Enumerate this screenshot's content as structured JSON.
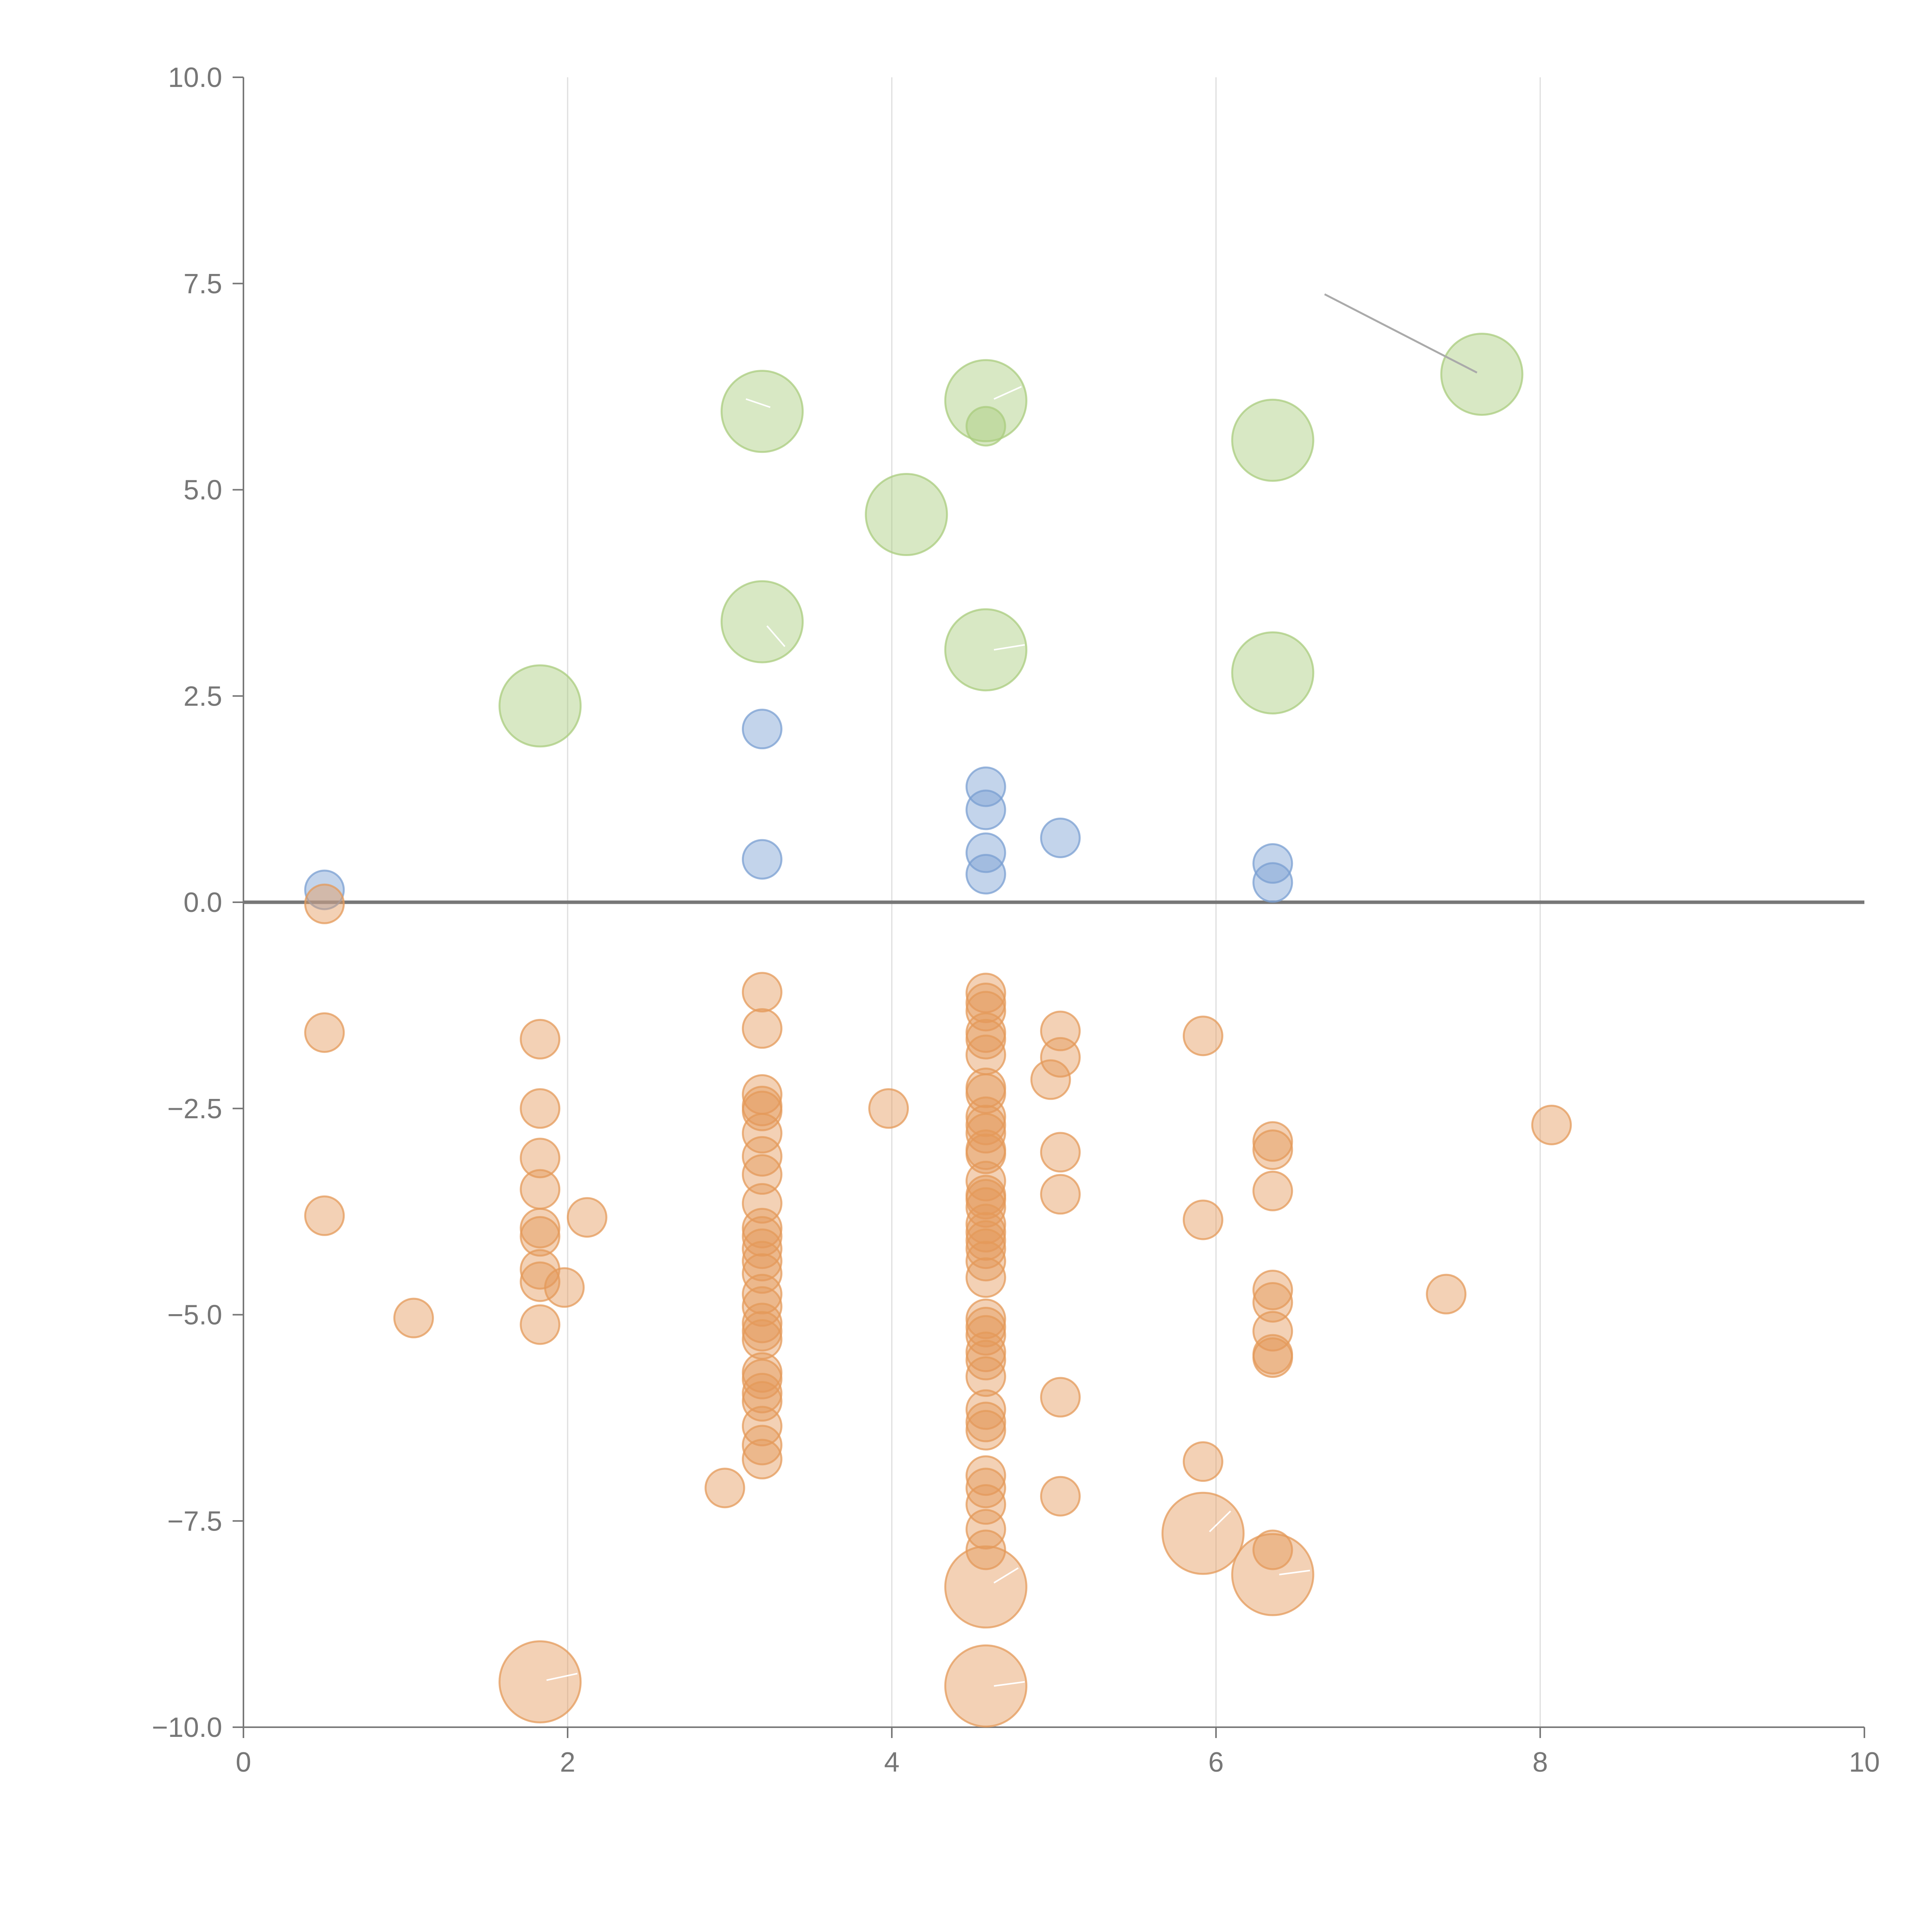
{
  "chart_data": {
    "type": "scatter",
    "title": "",
    "xlabel": "",
    "ylabel": "",
    "xlim": [
      0,
      10
    ],
    "ylim": [
      -10,
      10
    ],
    "grid": "vertical",
    "x_ticks": [
      "0",
      "2",
      "4",
      "6",
      "8",
      "10"
    ],
    "y_ticks": [
      "10.0",
      "7.5",
      "5.0",
      "2.5",
      "0.0",
      "−2.5",
      "−5.0",
      "−7.5",
      "−10.0"
    ],
    "x_tick_values": [
      0,
      2,
      4,
      6,
      8,
      10
    ],
    "y_tick_values": [
      10,
      7.5,
      5,
      2.5,
      0,
      -2.5,
      -5,
      -7.5,
      -10
    ],
    "colors": {
      "blue": "#7a9fd2",
      "green": "#a9cc7d",
      "orange": "#e49a5a",
      "grid": "#dddddd",
      "axis": "#777777"
    },
    "series": [
      {
        "name": "blue",
        "points": [
          {
            "x": 0.5,
            "y": 0.15,
            "s": 1
          },
          {
            "x": 3.2,
            "y": 2.1,
            "s": 1
          },
          {
            "x": 3.2,
            "y": 0.52,
            "s": 1
          },
          {
            "x": 4.58,
            "y": 1.4,
            "s": 1
          },
          {
            "x": 4.58,
            "y": 1.12,
            "s": 1
          },
          {
            "x": 4.58,
            "y": 0.6,
            "s": 1
          },
          {
            "x": 4.58,
            "y": 0.34,
            "s": 1
          },
          {
            "x": 5.04,
            "y": 0.78,
            "s": 1
          },
          {
            "x": 6.35,
            "y": 0.47,
            "s": 1
          },
          {
            "x": 6.35,
            "y": 0.24,
            "s": 1
          }
        ]
      },
      {
        "name": "green",
        "points": [
          {
            "x": 1.83,
            "y": 2.38,
            "s": 2.1
          },
          {
            "x": 3.2,
            "y": 5.95,
            "s": 2.1
          },
          {
            "x": 3.2,
            "y": 3.4,
            "s": 2.1
          },
          {
            "x": 4.09,
            "y": 4.7,
            "s": 2.1
          },
          {
            "x": 4.58,
            "y": 6.08,
            "s": 2.1
          },
          {
            "x": 4.58,
            "y": 5.77,
            "s": 1
          },
          {
            "x": 4.58,
            "y": 3.06,
            "s": 2.1
          },
          {
            "x": 6.35,
            "y": 5.6,
            "s": 2.1
          },
          {
            "x": 6.35,
            "y": 2.78,
            "s": 2.1
          },
          {
            "x": 7.64,
            "y": 6.4,
            "s": 2.1
          }
        ]
      },
      {
        "name": "orange",
        "points": [
          {
            "x": 0.5,
            "y": -0.02,
            "s": 1
          },
          {
            "x": 0.5,
            "y": -1.58,
            "s": 1
          },
          {
            "x": 0.5,
            "y": -3.8,
            "s": 1
          },
          {
            "x": 1.05,
            "y": -5.04,
            "s": 1
          },
          {
            "x": 1.83,
            "y": -1.66,
            "s": 1
          },
          {
            "x": 1.83,
            "y": -2.5,
            "s": 1
          },
          {
            "x": 1.83,
            "y": -3.1,
            "s": 1
          },
          {
            "x": 1.83,
            "y": -3.48,
            "s": 1
          },
          {
            "x": 1.83,
            "y": -3.95,
            "s": 1
          },
          {
            "x": 1.83,
            "y": -4.05,
            "s": 1
          },
          {
            "x": 1.83,
            "y": -4.45,
            "s": 1
          },
          {
            "x": 1.83,
            "y": -4.6,
            "s": 1
          },
          {
            "x": 1.83,
            "y": -5.12,
            "s": 1
          },
          {
            "x": 1.98,
            "y": -4.67,
            "s": 1
          },
          {
            "x": 2.12,
            "y": -3.82,
            "s": 1
          },
          {
            "x": 1.83,
            "y": -9.45,
            "s": 2.1
          },
          {
            "x": 2.97,
            "y": -7.1,
            "s": 1
          },
          {
            "x": 3.2,
            "y": -1.09,
            "s": 1
          },
          {
            "x": 3.2,
            "y": -1.53,
            "s": 1
          },
          {
            "x": 3.2,
            "y": -2.33,
            "s": 1
          },
          {
            "x": 3.2,
            "y": -2.47,
            "s": 1
          },
          {
            "x": 3.2,
            "y": -2.53,
            "s": 1
          },
          {
            "x": 3.2,
            "y": -2.8,
            "s": 1
          },
          {
            "x": 3.2,
            "y": -3.08,
            "s": 1
          },
          {
            "x": 3.2,
            "y": -3.3,
            "s": 1
          },
          {
            "x": 3.2,
            "y": -3.65,
            "s": 1
          },
          {
            "x": 3.2,
            "y": -3.95,
            "s": 1
          },
          {
            "x": 3.2,
            "y": -4.05,
            "s": 1
          },
          {
            "x": 3.2,
            "y": -4.2,
            "s": 1
          },
          {
            "x": 3.2,
            "y": -4.35,
            "s": 1
          },
          {
            "x": 3.2,
            "y": -4.5,
            "s": 1
          },
          {
            "x": 3.2,
            "y": -4.75,
            "s": 1
          },
          {
            "x": 3.2,
            "y": -4.9,
            "s": 1
          },
          {
            "x": 3.2,
            "y": -5.1,
            "s": 1
          },
          {
            "x": 3.2,
            "y": -5.2,
            "s": 1
          },
          {
            "x": 3.2,
            "y": -5.3,
            "s": 1
          },
          {
            "x": 3.2,
            "y": -5.7,
            "s": 1
          },
          {
            "x": 3.2,
            "y": -5.78,
            "s": 1
          },
          {
            "x": 3.2,
            "y": -5.95,
            "s": 1
          },
          {
            "x": 3.2,
            "y": -6.05,
            "s": 1
          },
          {
            "x": 3.2,
            "y": -6.35,
            "s": 1
          },
          {
            "x": 3.2,
            "y": -6.58,
            "s": 1
          },
          {
            "x": 3.2,
            "y": -6.75,
            "s": 1
          },
          {
            "x": 3.98,
            "y": -2.5,
            "s": 1
          },
          {
            "x": 4.58,
            "y": -1.1,
            "s": 1
          },
          {
            "x": 4.58,
            "y": -1.22,
            "s": 1
          },
          {
            "x": 4.58,
            "y": -1.32,
            "s": 1
          },
          {
            "x": 4.58,
            "y": -1.58,
            "s": 1
          },
          {
            "x": 4.58,
            "y": -1.66,
            "s": 1
          },
          {
            "x": 4.58,
            "y": -1.85,
            "s": 1
          },
          {
            "x": 4.58,
            "y": -2.25,
            "s": 1
          },
          {
            "x": 4.58,
            "y": -2.32,
            "s": 1
          },
          {
            "x": 4.58,
            "y": -2.6,
            "s": 1
          },
          {
            "x": 4.58,
            "y": -2.7,
            "s": 1
          },
          {
            "x": 4.58,
            "y": -2.8,
            "s": 1
          },
          {
            "x": 4.58,
            "y": -3.0,
            "s": 1
          },
          {
            "x": 4.58,
            "y": -3.05,
            "s": 1
          },
          {
            "x": 4.58,
            "y": -3.38,
            "s": 1
          },
          {
            "x": 4.58,
            "y": -3.55,
            "s": 1
          },
          {
            "x": 4.58,
            "y": -3.6,
            "s": 1
          },
          {
            "x": 4.58,
            "y": -3.7,
            "s": 1
          },
          {
            "x": 4.58,
            "y": -3.9,
            "s": 1
          },
          {
            "x": 4.58,
            "y": -4.0,
            "s": 1
          },
          {
            "x": 4.58,
            "y": -4.1,
            "s": 1
          },
          {
            "x": 4.58,
            "y": -4.2,
            "s": 1
          },
          {
            "x": 4.58,
            "y": -4.35,
            "s": 1
          },
          {
            "x": 4.58,
            "y": -4.55,
            "s": 1
          },
          {
            "x": 4.58,
            "y": -5.05,
            "s": 1
          },
          {
            "x": 4.58,
            "y": -5.15,
            "s": 1
          },
          {
            "x": 4.58,
            "y": -5.25,
            "s": 1
          },
          {
            "x": 4.58,
            "y": -5.45,
            "s": 1
          },
          {
            "x": 4.58,
            "y": -5.55,
            "s": 1
          },
          {
            "x": 4.58,
            "y": -5.75,
            "s": 1
          },
          {
            "x": 4.58,
            "y": -6.15,
            "s": 1
          },
          {
            "x": 4.58,
            "y": -6.3,
            "s": 1
          },
          {
            "x": 4.58,
            "y": -6.4,
            "s": 1
          },
          {
            "x": 4.58,
            "y": -6.95,
            "s": 1
          },
          {
            "x": 4.58,
            "y": -7.1,
            "s": 1
          },
          {
            "x": 4.58,
            "y": -7.3,
            "s": 1
          },
          {
            "x": 4.58,
            "y": -7.6,
            "s": 1
          },
          {
            "x": 4.58,
            "y": -7.85,
            "s": 1
          },
          {
            "x": 4.58,
            "y": -8.3,
            "s": 2.1
          },
          {
            "x": 4.58,
            "y": -9.5,
            "s": 2.1
          },
          {
            "x": 5.04,
            "y": -1.56,
            "s": 1
          },
          {
            "x": 5.04,
            "y": -1.88,
            "s": 1
          },
          {
            "x": 4.98,
            "y": -2.15,
            "s": 1
          },
          {
            "x": 5.04,
            "y": -3.03,
            "s": 1
          },
          {
            "x": 5.04,
            "y": -3.54,
            "s": 1
          },
          {
            "x": 5.04,
            "y": -6.0,
            "s": 1
          },
          {
            "x": 5.04,
            "y": -7.2,
            "s": 1
          },
          {
            "x": 5.92,
            "y": -1.62,
            "s": 1
          },
          {
            "x": 5.92,
            "y": -3.85,
            "s": 1
          },
          {
            "x": 5.92,
            "y": -6.78,
            "s": 1
          },
          {
            "x": 5.92,
            "y": -7.65,
            "s": 2.1
          },
          {
            "x": 6.35,
            "y": -2.9,
            "s": 1
          },
          {
            "x": 6.35,
            "y": -3.0,
            "s": 1
          },
          {
            "x": 6.35,
            "y": -3.5,
            "s": 1
          },
          {
            "x": 6.35,
            "y": -4.7,
            "s": 1
          },
          {
            "x": 6.35,
            "y": -4.85,
            "s": 1
          },
          {
            "x": 6.35,
            "y": -5.2,
            "s": 1
          },
          {
            "x": 6.35,
            "y": -5.48,
            "s": 1
          },
          {
            "x": 6.35,
            "y": -5.52,
            "s": 1
          },
          {
            "x": 6.35,
            "y": -7.85,
            "s": 1
          },
          {
            "x": 6.35,
            "y": -8.15,
            "s": 2.1
          },
          {
            "x": 7.42,
            "y": -4.75,
            "s": 1
          },
          {
            "x": 8.07,
            "y": -2.7,
            "s": 1
          }
        ]
      }
    ],
    "leader_lines": [
      {
        "x1": 3.1,
        "y1": 6.1,
        "x2": 3.25,
        "y2": 6.0,
        "style": "light"
      },
      {
        "x1": 4.63,
        "y1": 6.1,
        "x2": 4.8,
        "y2": 6.25,
        "style": "light"
      },
      {
        "x1": 3.23,
        "y1": 3.35,
        "x2": 3.34,
        "y2": 3.1,
        "style": "light"
      },
      {
        "x1": 4.63,
        "y1": 3.06,
        "x2": 4.82,
        "y2": 3.12,
        "style": "light"
      },
      {
        "x1": 6.67,
        "y1": 7.37,
        "x2": 7.61,
        "y2": 6.42,
        "style": "dark"
      },
      {
        "x1": 1.87,
        "y1": -9.43,
        "x2": 2.06,
        "y2": -9.35,
        "style": "light"
      },
      {
        "x1": 4.63,
        "y1": -9.5,
        "x2": 4.82,
        "y2": -9.45,
        "style": "light"
      },
      {
        "x1": 4.63,
        "y1": -8.25,
        "x2": 4.78,
        "y2": -8.07,
        "style": "light"
      },
      {
        "x1": 5.96,
        "y1": -7.63,
        "x2": 6.09,
        "y2": -7.38,
        "style": "light"
      },
      {
        "x1": 6.39,
        "y1": -8.15,
        "x2": 6.58,
        "y2": -8.1,
        "style": "light"
      }
    ]
  }
}
